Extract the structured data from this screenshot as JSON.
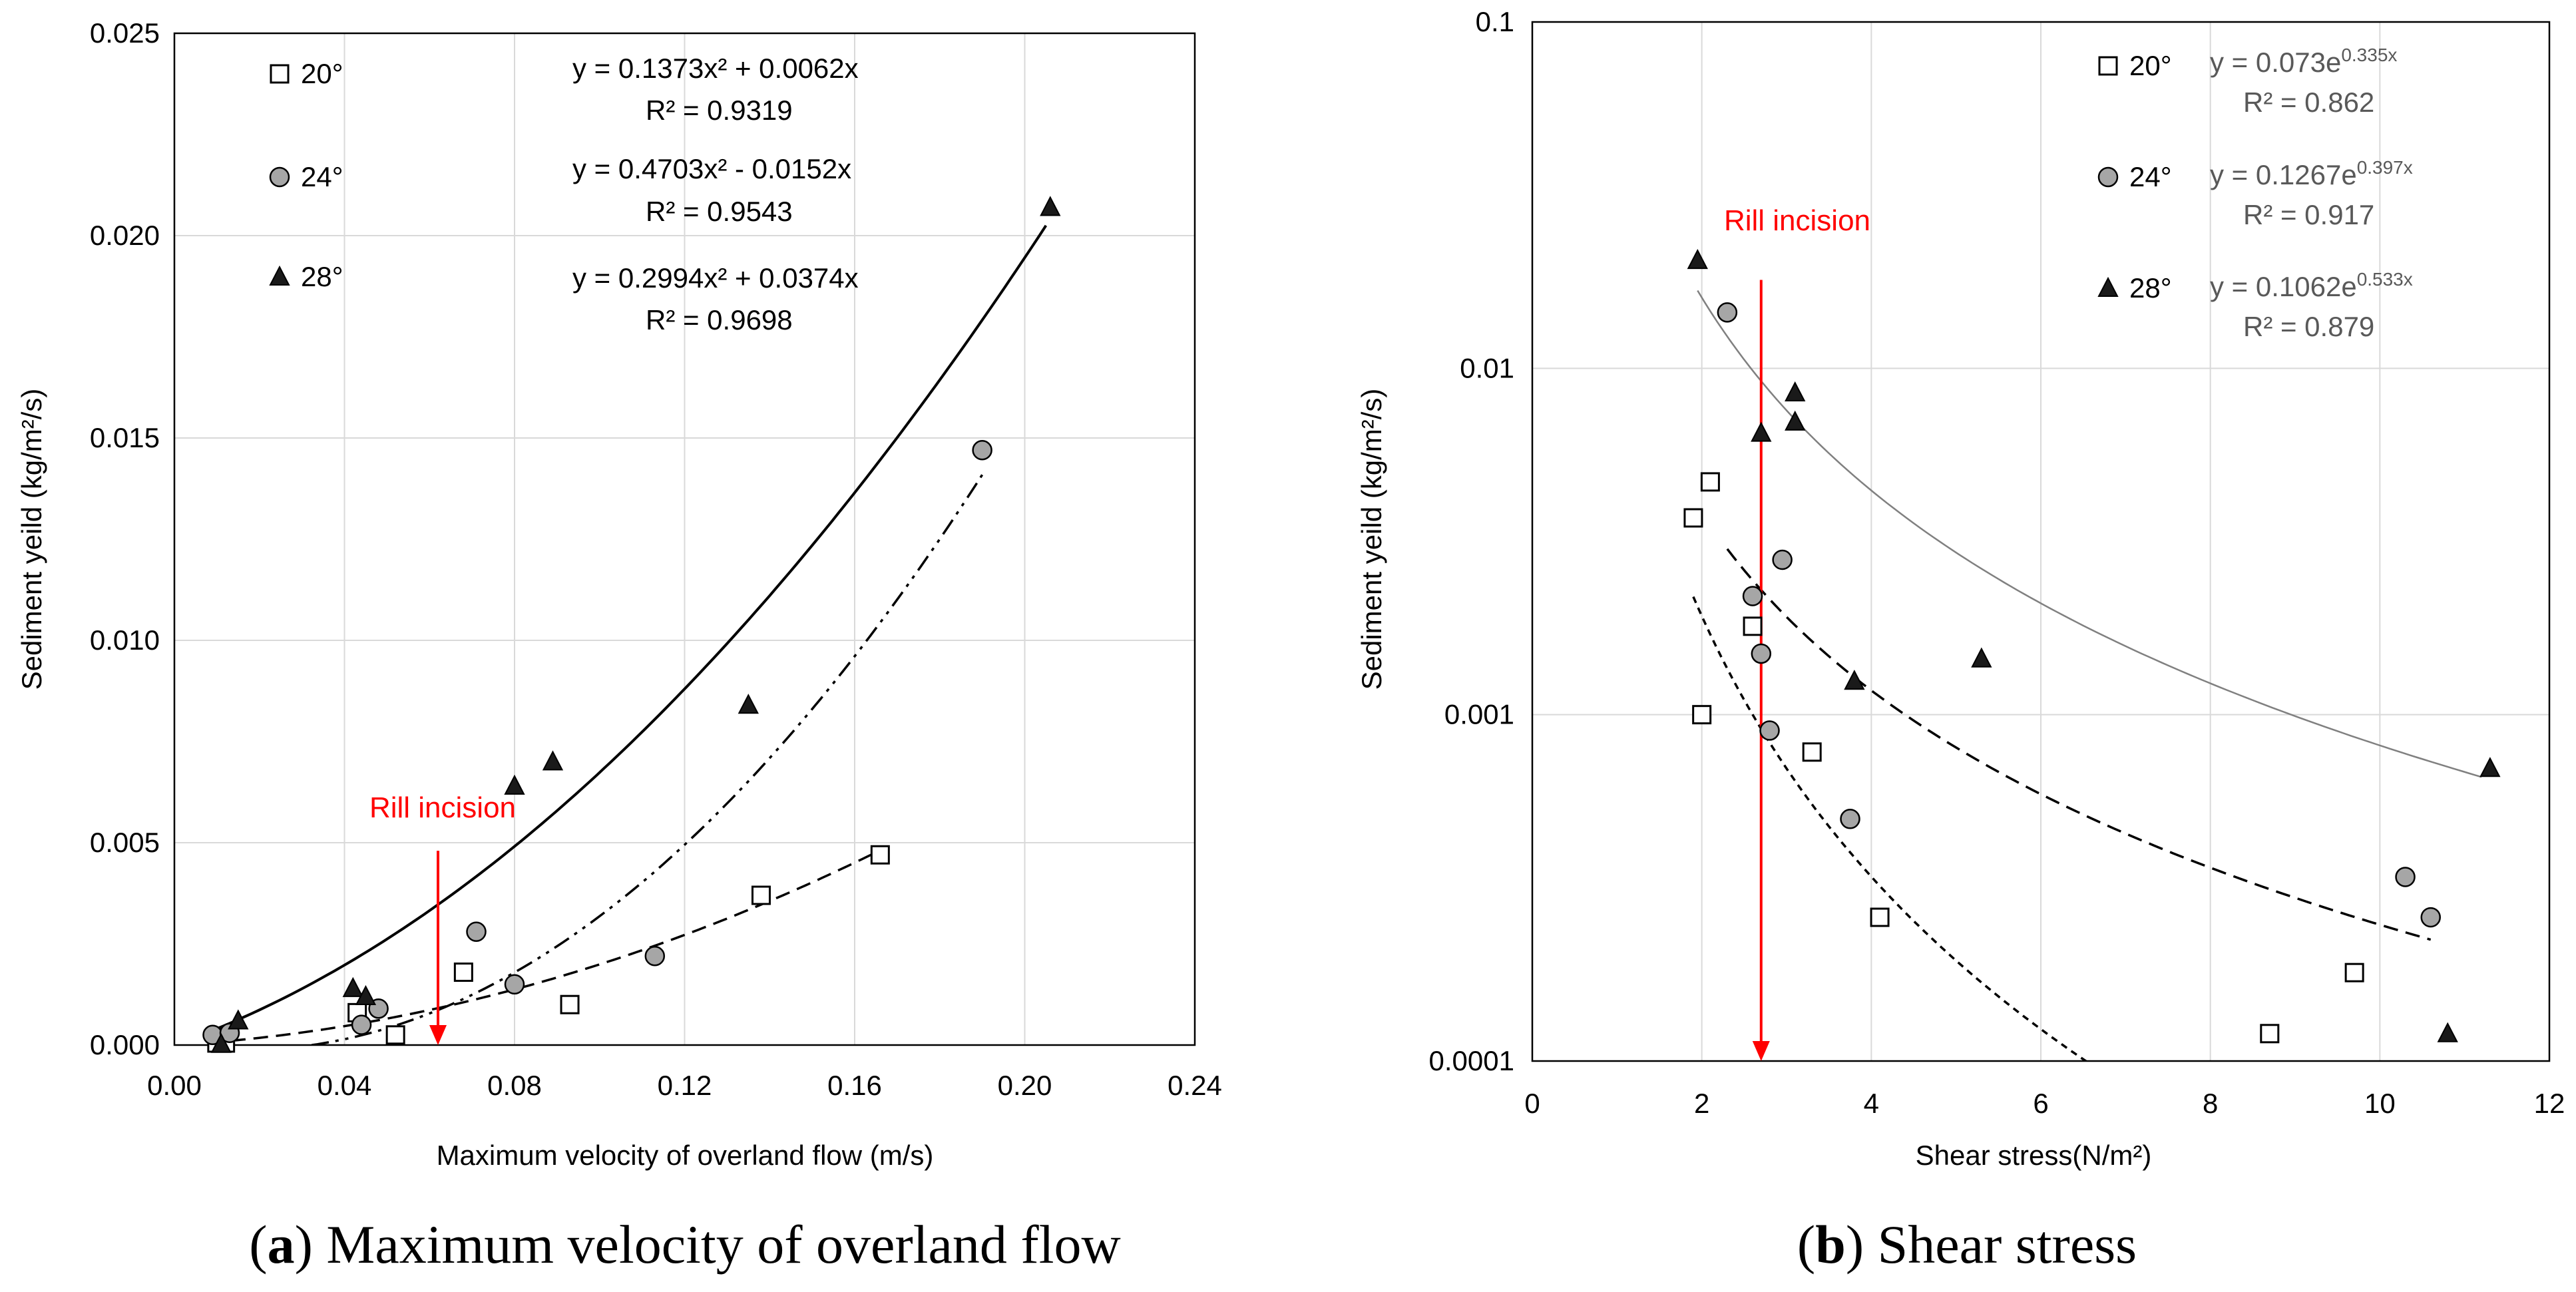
{
  "figure": {
    "panel_a_caption": {
      "letter": "a",
      "text": " Maximum velocity of overland flow"
    },
    "panel_b_caption": {
      "letter": "b",
      "text": " Shear stress"
    }
  },
  "colors": {
    "grid": "#d9d9d9",
    "axis": "#000000",
    "open_marker": "#ffffff",
    "gray_marker": "#a6a6a6",
    "black_marker": "#1a1a1a",
    "annotation_red": "#ff0000",
    "equation_gray": "#595959"
  },
  "chart_data": [
    {
      "id": "a",
      "type": "scatter",
      "title": "",
      "xlabel": "Maximum velocity of overland flow (m/s)",
      "ylabel": "Sediment yeild (kg/m²/s)",
      "xlim": [
        0,
        0.24
      ],
      "ylim": [
        0,
        0.025
      ],
      "yscale": "linear",
      "grid": true,
      "xticks": [
        0,
        0.04,
        0.08,
        0.12,
        0.16,
        0.2,
        0.24
      ],
      "xticklabels": [
        "0.00",
        "0.04",
        "0.08",
        "0.12",
        "0.16",
        "0.20",
        "0.24"
      ],
      "yticks": [
        0,
        0.005,
        0.01,
        0.015,
        0.02,
        0.025
      ],
      "yticklabels": [
        "0.000",
        "0.005",
        "0.010",
        "0.015",
        "0.020",
        "0.025"
      ],
      "legend_position": "top-left",
      "series": [
        {
          "name": "20°",
          "marker": "square-open",
          "line": "dashed",
          "equation": "y = 0.1373x² + 0.0062x",
          "r2": "R² = 0.9319",
          "fit": {
            "kind": "poly",
            "a": 0.1373,
            "b": 0.0062,
            "x_range": [
              0.008,
              0.167
            ]
          },
          "points": [
            [
              0.01,
              5e-05
            ],
            [
              0.012,
              5e-05
            ],
            [
              0.043,
              0.0008
            ],
            [
              0.052,
              0.00025
            ],
            [
              0.068,
              0.0018
            ],
            [
              0.093,
              0.001
            ],
            [
              0.138,
              0.0037
            ],
            [
              0.166,
              0.0047
            ]
          ]
        },
        {
          "name": "24°",
          "marker": "circle-gray",
          "line": "dash-dot",
          "equation": "y = 0.4703x² - 0.0152x",
          "r2": "R² = 0.9543",
          "fit": {
            "kind": "poly",
            "a": 0.4703,
            "b": -0.0152,
            "x_range": [
              0.0323,
              0.19
            ]
          },
          "points": [
            [
              0.009,
              0.00025
            ],
            [
              0.013,
              0.0003
            ],
            [
              0.044,
              0.0005
            ],
            [
              0.048,
              0.0009
            ],
            [
              0.071,
              0.0028
            ],
            [
              0.08,
              0.0015
            ],
            [
              0.113,
              0.0022
            ],
            [
              0.19,
              0.0147
            ]
          ]
        },
        {
          "name": "28°",
          "marker": "triangle-black",
          "line": "solid",
          "equation": "y = 0.2994x² + 0.0374x",
          "r2": "R² = 0.9698",
          "fit": {
            "kind": "poly",
            "a": 0.2994,
            "b": 0.0374,
            "x_range": [
              0.01,
              0.205
            ]
          },
          "points": [
            [
              0.011,
              2e-05
            ],
            [
              0.015,
              0.0006
            ],
            [
              0.042,
              0.0014
            ],
            [
              0.045,
              0.0012
            ],
            [
              0.08,
              0.0064
            ],
            [
              0.089,
              0.007
            ],
            [
              0.135,
              0.0084
            ],
            [
              0.206,
              0.0207
            ]
          ]
        }
      ],
      "annotation": {
        "text": "Rill incision",
        "x": 0.062,
        "y_from": 0.0048,
        "y_to": 0.0
      }
    },
    {
      "id": "b",
      "type": "scatter",
      "title": "",
      "xlabel": "Shear stress(N/m²)",
      "ylabel": "Sediment yeild (kg/m²/s)",
      "xlim": [
        0,
        12
      ],
      "ylim": [
        0.0001,
        0.1
      ],
      "yscale": "log",
      "grid": true,
      "xticks": [
        0,
        2,
        4,
        6,
        8,
        10,
        12
      ],
      "xticklabels": [
        "0",
        "2",
        "4",
        "6",
        "8",
        "10",
        "12"
      ],
      "yticks": [
        0.0001,
        0.001,
        0.01,
        0.1
      ],
      "yticklabels": [
        "0.0001",
        "0.001",
        "0.01",
        "0.1"
      ],
      "legend_position": "top-right",
      "series": [
        {
          "name": "20°",
          "marker": "square-open",
          "line": "short-dash",
          "eq_base": "y = 0.073e",
          "eq_exp": "0.335x",
          "r2": "R² = 0.862",
          "fit": {
            "kind": "power",
            "a": 0.0109,
            "b": -2.5,
            "x_range": [
              1.9,
              9.7
            ]
          },
          "points": [
            [
              1.9,
              0.0037
            ],
            [
              2.1,
              0.0047
            ],
            [
              2.0,
              0.001
            ],
            [
              2.6,
              0.0018
            ],
            [
              3.3,
              0.00078
            ],
            [
              4.1,
              0.00026
            ],
            [
              8.7,
              0.00012
            ],
            [
              9.7,
              0.00018
            ]
          ]
        },
        {
          "name": "24°",
          "marker": "circle-gray",
          "line": "dashed",
          "eq_base": "y = 0.1267e",
          "eq_exp": "0.397x",
          "r2": "R² = 0.917",
          "fit": {
            "kind": "power",
            "a": 0.0124,
            "b": -1.7,
            "x_range": [
              2.3,
              10.6
            ]
          },
          "points": [
            [
              2.3,
              0.0145
            ],
            [
              2.6,
              0.0022
            ],
            [
              2.7,
              0.0015
            ],
            [
              2.8,
              0.0009
            ],
            [
              2.95,
              0.0028
            ],
            [
              3.75,
              0.0005
            ],
            [
              10.3,
              0.00034
            ],
            [
              10.6,
              0.00026
            ]
          ]
        },
        {
          "name": "28°",
          "marker": "triangle-black",
          "line": "solid",
          "eq_base": "y = 0.1062e",
          "eq_exp": "0.533x",
          "r2": "R² = 0.879",
          "fit": {
            "kind": "power",
            "a": 0.0577,
            "b": -1.85,
            "x_range": [
              1.95,
              11.2
            ]
          },
          "points": [
            [
              1.95,
              0.0205
            ],
            [
              2.7,
              0.0065
            ],
            [
              3.1,
              0.0085
            ],
            [
              3.1,
              0.007
            ],
            [
              3.8,
              0.00125
            ],
            [
              5.3,
              0.00145
            ],
            [
              10.8,
              0.00012
            ],
            [
              11.3,
              0.0007
            ]
          ]
        }
      ],
      "annotation": {
        "text": "Rill incision",
        "x": 2.7,
        "y_from": 0.018,
        "y_to": 0.0001
      }
    }
  ]
}
